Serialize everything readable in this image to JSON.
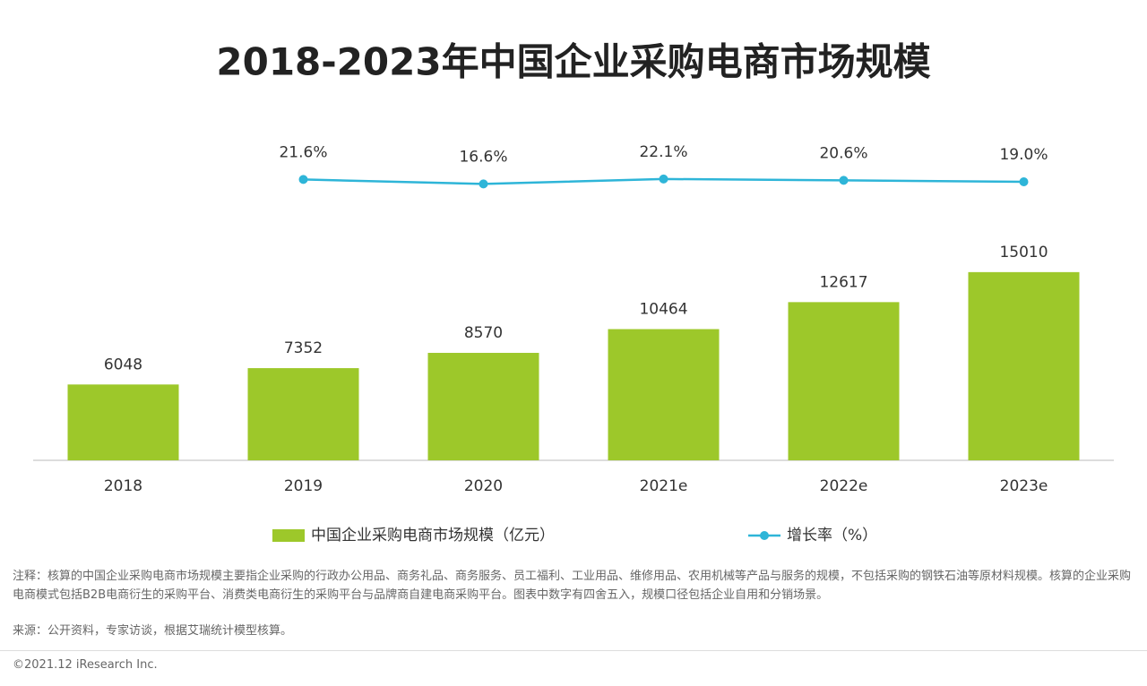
{
  "chart_data": {
    "type": "bar",
    "title": "2018-2023年中国企业采购电商市场规模",
    "categories": [
      "2018",
      "2019",
      "2020",
      "2021e",
      "2022e",
      "2023e"
    ],
    "series": [
      {
        "name": "中国企业采购电商市场规模（亿元）",
        "type": "bar",
        "color": "#9dc82a",
        "values": [
          6048,
          7352,
          8570,
          10464,
          12617,
          15010
        ]
      },
      {
        "name": "增长率（%）",
        "type": "line",
        "axis": "y2",
        "color": "#2eb5d8",
        "values": [
          null,
          21.6,
          16.6,
          22.1,
          20.6,
          19.0
        ],
        "value_labels": [
          null,
          "21.6%",
          "16.6%",
          "22.1%",
          "20.6%",
          "19.0%"
        ]
      }
    ],
    "ylim": [
      0,
      18000
    ],
    "y2lim": [
      0,
      100
    ],
    "legend": "bottom"
  },
  "footer": {
    "note": "注释：核算的中国企业采购电商市场规模主要指企业采购的行政办公用品、商务礼品、商务服务、员工福利、工业用品、维修用品、农用机械等产品与服务的规模，不包括采购的钢铁石油等原材料规模。核算的企业采购电商模式包括B2B电商衍生的采购平台、消费类电商衍生的采购平台与品牌商自建电商采购平台。图表中数字有四舍五入，规模口径包括企业自用和分销场景。",
    "source": "来源：公开资料，专家访谈，根据艾瑞统计模型核算。",
    "copyright": "©2021.12 iResearch Inc."
  }
}
